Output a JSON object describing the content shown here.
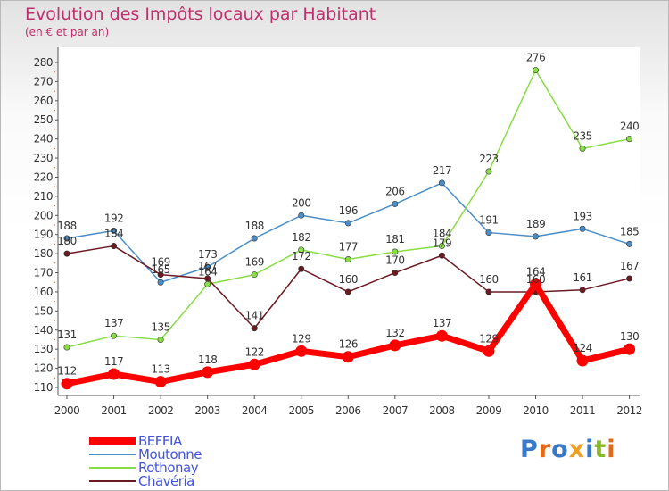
{
  "title": "Evolution des Impôts locaux par Habitant",
  "subtitle": "(en € et par an)",
  "logo_text": "Proxiti",
  "chart_data": {
    "type": "line",
    "x": [
      "2000",
      "2001",
      "2002",
      "2003",
      "2004",
      "2005",
      "2006",
      "2007",
      "2008",
      "2009",
      "2010",
      "2011",
      "2012"
    ],
    "ylim": [
      110,
      280
    ],
    "yticks": [
      110,
      120,
      130,
      140,
      150,
      160,
      170,
      180,
      190,
      200,
      210,
      220,
      230,
      240,
      250,
      260,
      270,
      280
    ],
    "grid": false,
    "legend_position": "bottom-left",
    "series": [
      {
        "name": "BEFFIA",
        "color": "#ff0000",
        "values": [
          112,
          117,
          113,
          118,
          122,
          129,
          126,
          132,
          137,
          129,
          164,
          124,
          130
        ]
      },
      {
        "name": "Moutonne",
        "color": "#4a8ec8",
        "values": [
          188,
          192,
          165,
          173,
          188,
          200,
          196,
          206,
          217,
          191,
          189,
          193,
          185
        ]
      },
      {
        "name": "Rothonay",
        "color": "#88dd44",
        "values": [
          131,
          137,
          135,
          164,
          169,
          182,
          177,
          181,
          184,
          223,
          276,
          235,
          240
        ]
      },
      {
        "name": "Chavéria",
        "color": "#6b1a22",
        "values": [
          180,
          184,
          169,
          167,
          141,
          172,
          160,
          170,
          179,
          160,
          160,
          161,
          167
        ]
      }
    ]
  }
}
